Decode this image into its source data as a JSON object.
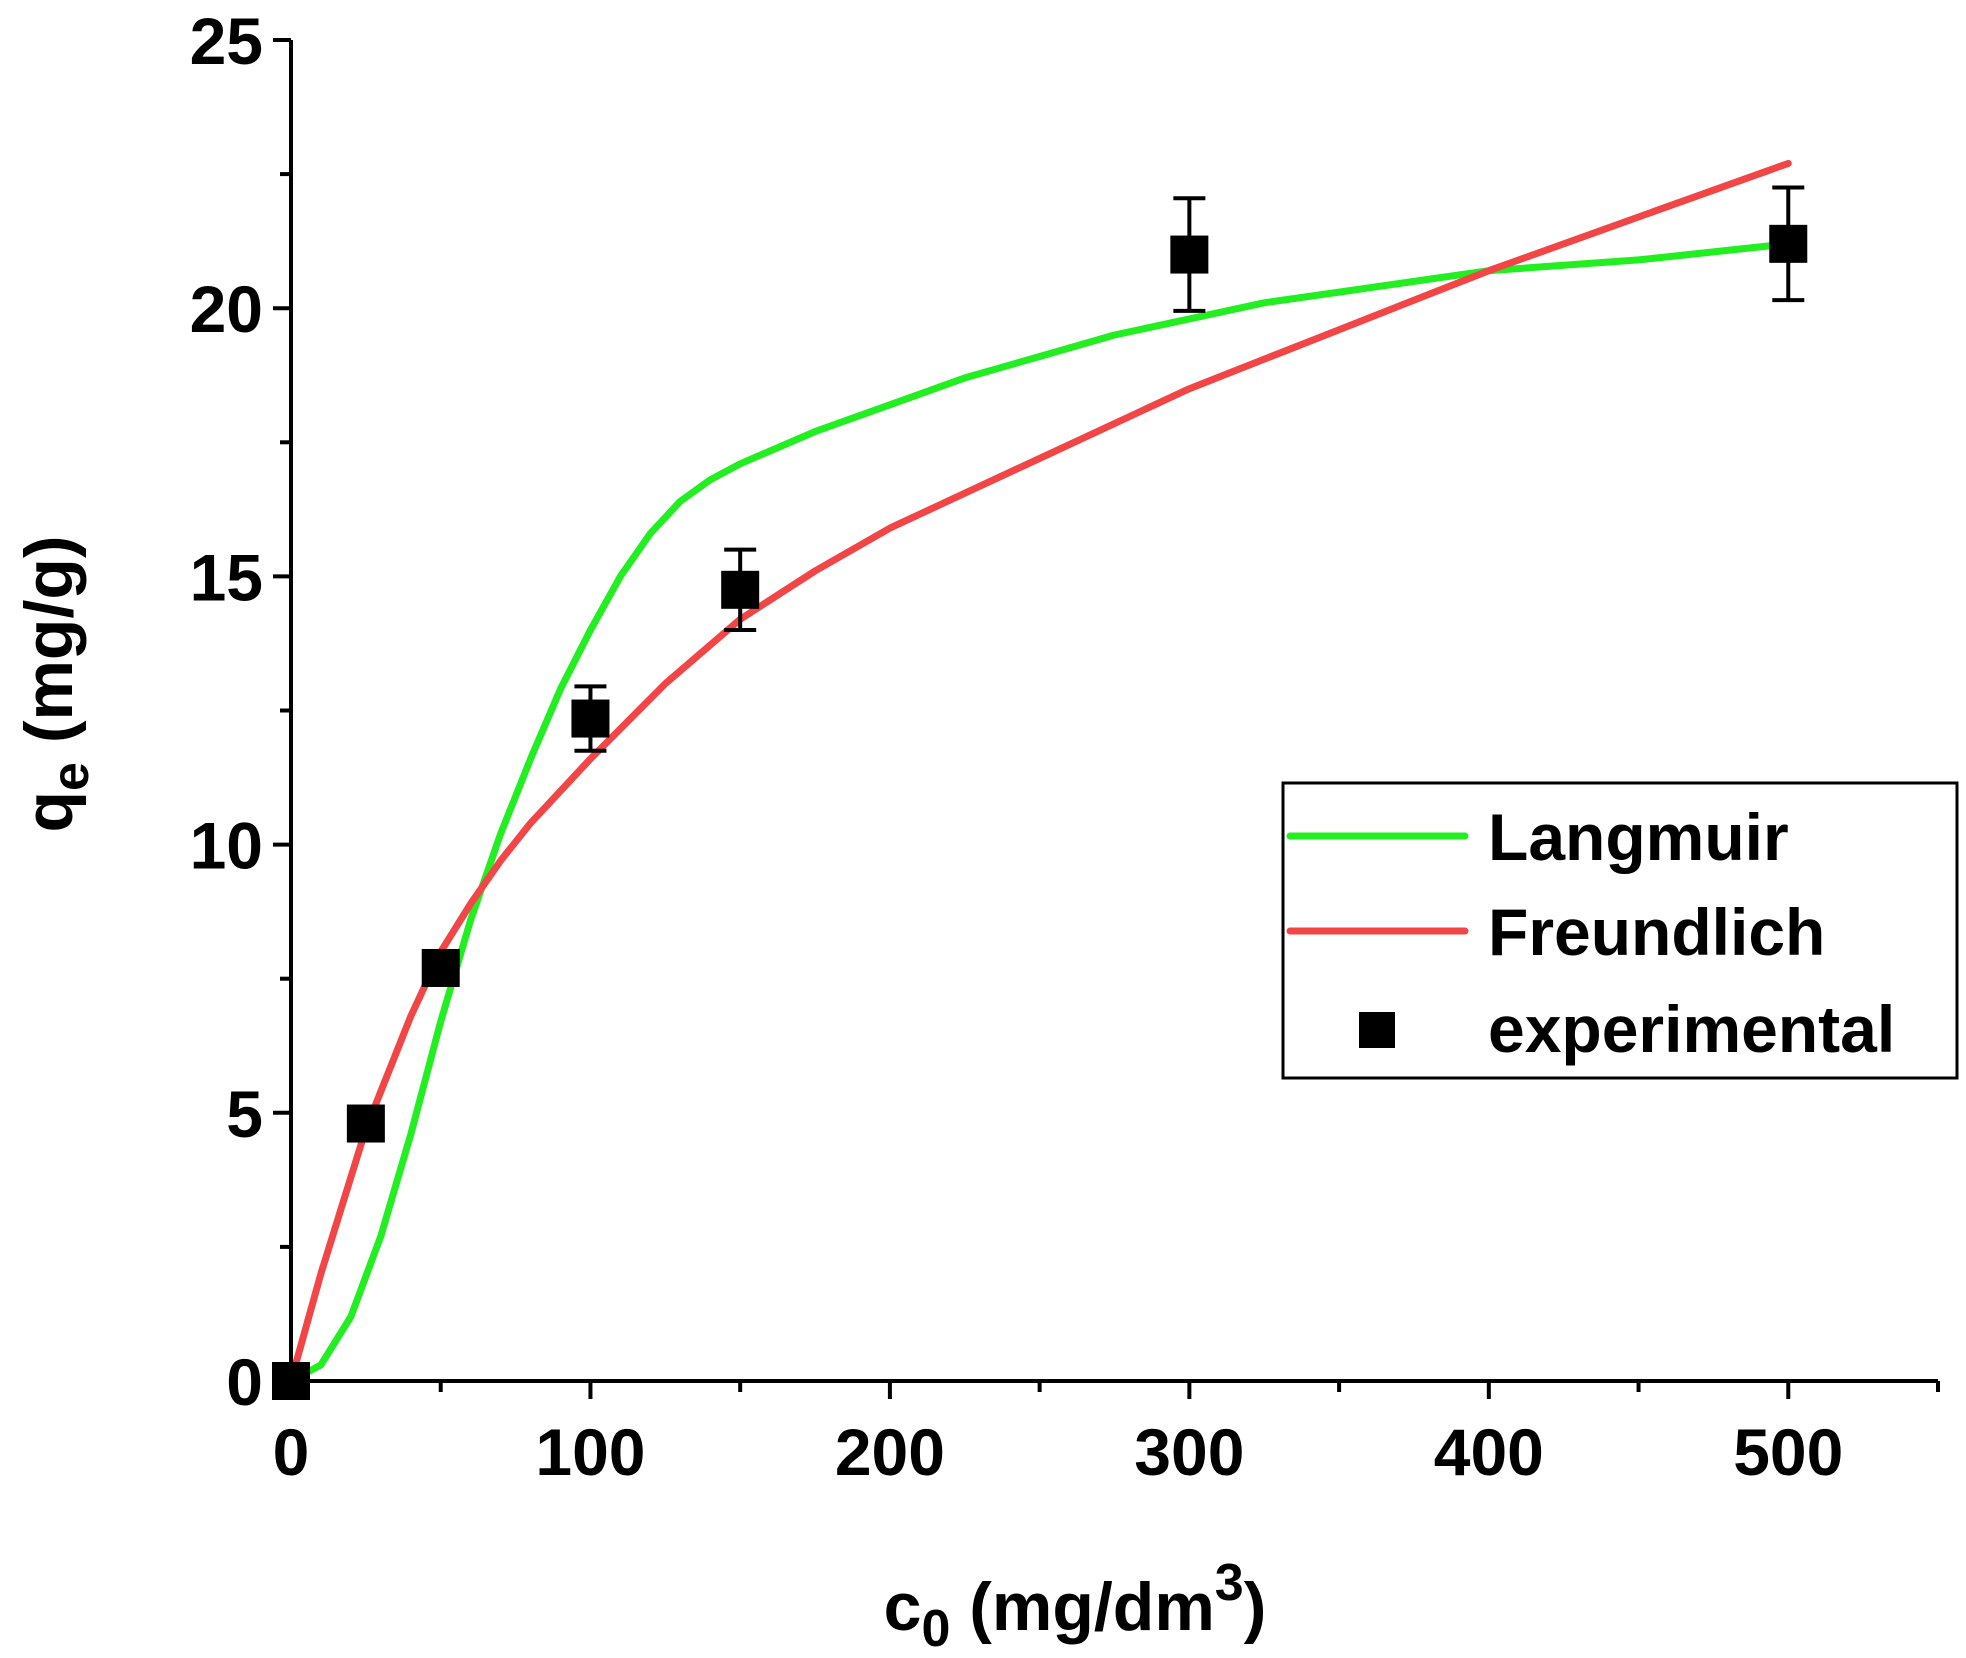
{
  "chart_data": {
    "type": "line",
    "title": "",
    "xlabel": "c0 (mg/dm3)",
    "xlabel_parts": {
      "base": "c",
      "sub": "0",
      "unit_open": " (mg/dm",
      "sup": "3",
      "unit_close": ")"
    },
    "ylabel": "qe (mg/g)",
    "ylabel_parts": {
      "base": "q",
      "sub": "e",
      "unit": " (mg/g)"
    },
    "xlim": [
      0,
      550
    ],
    "ylim": [
      0,
      25
    ],
    "xticks": [
      0,
      100,
      200,
      300,
      400,
      500
    ],
    "xtick_labels": [
      "0",
      "100",
      "200",
      "300",
      "400",
      "500"
    ],
    "xminor_ticks": [
      50,
      150,
      250,
      350,
      450,
      550
    ],
    "yticks": [
      0,
      5,
      10,
      15,
      20,
      25
    ],
    "ytick_labels": [
      "0",
      "5",
      "10",
      "15",
      "20",
      "25"
    ],
    "yminor_ticks": [
      2.5,
      7.5,
      12.5,
      17.5,
      22.5
    ],
    "grid": false,
    "legend_position": "center-right",
    "series": [
      {
        "name": "Langmuir",
        "kind": "line",
        "color": "#22ee22",
        "x": [
          0,
          10,
          20,
          30,
          40,
          50,
          60,
          70,
          80,
          90,
          100,
          110,
          120,
          130,
          140,
          150,
          175,
          200,
          225,
          250,
          275,
          300,
          325,
          350,
          375,
          400,
          425,
          450,
          475,
          500
        ],
        "y": [
          0.0,
          0.3,
          1.2,
          2.7,
          4.6,
          6.7,
          8.6,
          10.2,
          11.6,
          12.9,
          14.0,
          15.0,
          15.8,
          16.4,
          16.8,
          17.1,
          17.7,
          18.2,
          18.7,
          19.1,
          19.5,
          19.8,
          20.1,
          20.3,
          20.5,
          20.7,
          20.8,
          20.9,
          21.05,
          21.2
        ]
      },
      {
        "name": "Freundlich",
        "kind": "line",
        "color": "#f24646",
        "x": [
          0,
          10,
          25,
          40,
          50,
          60,
          70,
          80,
          90,
          100,
          125,
          150,
          175,
          200,
          250,
          300,
          350,
          400,
          450,
          500
        ],
        "y": [
          0.0,
          2.0,
          4.7,
          6.8,
          8.0,
          8.9,
          9.7,
          10.4,
          11.0,
          11.6,
          13.0,
          14.2,
          15.1,
          15.9,
          17.2,
          18.5,
          19.6,
          20.7,
          21.7,
          22.7
        ]
      },
      {
        "name": "experimental",
        "kind": "scatter",
        "marker": "square",
        "color": "#000000",
        "x": [
          0,
          25,
          50,
          100,
          150,
          300,
          500
        ],
        "y": [
          0.0,
          4.8,
          7.7,
          12.35,
          14.75,
          21.0,
          21.2
        ],
        "yerr": [
          0.0,
          0.1,
          0.3,
          0.6,
          0.75,
          1.05,
          1.05
        ]
      }
    ]
  }
}
